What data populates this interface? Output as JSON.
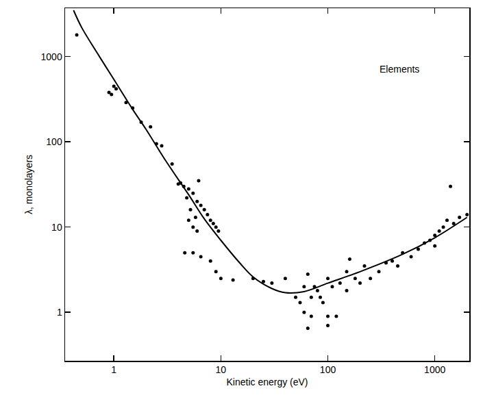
{
  "chart_data": {
    "type": "scatter",
    "x_label": "Kinetic energy (eV)",
    "y_label": "λ, monolayers",
    "annotations": [
      {
        "text": "Elements",
        "x": 470,
        "y": 710
      }
    ],
    "log": true,
    "grid": false,
    "xlim": [
      0.35,
      2100
    ],
    "ylim": [
      0.27,
      3700
    ],
    "xticks": [
      1,
      10,
      100,
      1000
    ],
    "yticks": [
      1,
      10,
      100,
      1000
    ],
    "series": [
      {
        "type": "scatter",
        "color": "#000000",
        "marker": "circle",
        "x": [
          0.45,
          0.9,
          0.95,
          1,
          1.05,
          1.3,
          1.5,
          1.8,
          2.2,
          2.5,
          2.8,
          3.5,
          4,
          4.2,
          4.5,
          5,
          5.5,
          6,
          6.5,
          7,
          7.5,
          8,
          8.5,
          9,
          9.5,
          4.8,
          5.2,
          5.8,
          6.2,
          5,
          5.5,
          6,
          4.6,
          5.5,
          6.5,
          8,
          9,
          10,
          13,
          20,
          25,
          30,
          40,
          50,
          55,
          60,
          65,
          70,
          70,
          75,
          80,
          85,
          90,
          60,
          65,
          100,
          100,
          120,
          110,
          130,
          150,
          150,
          180,
          200,
          220,
          250,
          300,
          350,
          400,
          450,
          500,
          600,
          700,
          800,
          900,
          1000,
          1000,
          1100,
          1200,
          1300,
          1500,
          1700,
          2000,
          1400,
          100,
          160
        ],
        "values": [
          1800,
          380,
          360,
          450,
          420,
          290,
          250,
          170,
          150,
          95,
          90,
          55,
          32,
          33,
          30,
          28,
          25,
          20,
          18,
          16,
          14,
          12,
          11,
          10,
          9,
          22,
          16,
          13,
          35,
          12,
          10,
          9,
          5,
          5,
          4.5,
          4,
          3,
          2.5,
          2.4,
          2.5,
          2.3,
          2.2,
          2.5,
          1.5,
          1.3,
          1,
          0.65,
          0.9,
          1.5,
          2,
          1.8,
          1.5,
          1.3,
          2,
          2.8,
          2.5,
          0.9,
          0.9,
          2,
          2.2,
          3,
          1.8,
          2.5,
          2.2,
          3.5,
          2.5,
          3,
          3.8,
          4,
          3.5,
          5,
          4.5,
          5.5,
          6.5,
          7,
          8,
          6,
          9,
          10,
          12,
          11,
          13,
          14,
          30,
          0.7,
          4.2
        ]
      },
      {
        "type": "line",
        "color": "#000000",
        "line_style": "solid",
        "x": [
          0.42,
          0.5,
          0.7,
          1,
          1.5,
          2,
          3,
          5,
          7,
          10,
          15,
          20,
          30,
          40,
          60,
          100,
          200,
          500,
          1000,
          2000
        ],
        "values": [
          3500,
          2200,
          1100,
          540,
          240,
          140,
          62,
          24,
          12.5,
          7,
          3.8,
          2.6,
          1.9,
          1.7,
          1.75,
          2.2,
          3.0,
          4.8,
          7.5,
          13
        ]
      }
    ]
  }
}
